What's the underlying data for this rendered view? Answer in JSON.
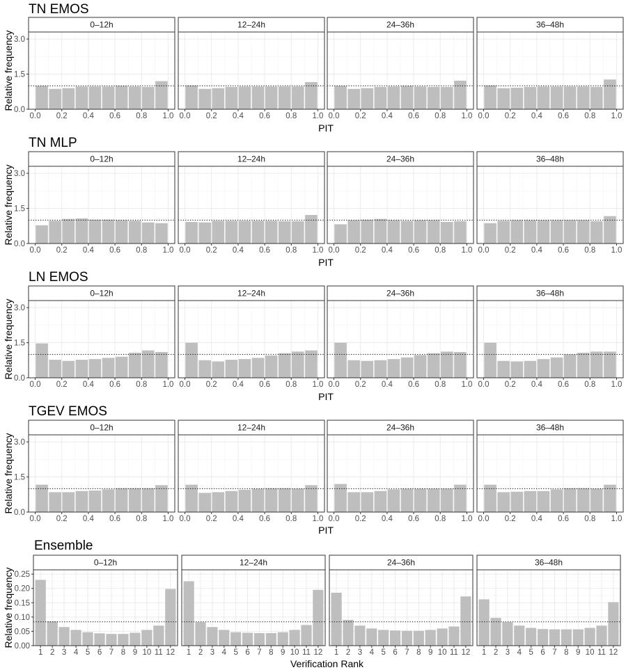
{
  "chart_data": [
    {
      "type": "bar",
      "title": "TN EMOS",
      "xlabel": "PIT",
      "ylabel": "Relative frequency",
      "panels": [
        "0–12h",
        "12–24h",
        "24–36h",
        "36–48h"
      ],
      "x": [
        0.05,
        0.15,
        0.25,
        0.35,
        0.45,
        0.55,
        0.65,
        0.75,
        0.85,
        0.95
      ],
      "xticks": [
        "0.0",
        "0.2",
        "0.4",
        "0.6",
        "0.8",
        "1.0"
      ],
      "xlim": [
        -0.05,
        1.05
      ],
      "yticks": [
        "0.0",
        "1.5",
        "3.0"
      ],
      "ylim": [
        0,
        3.3
      ],
      "reference": 1.0,
      "grid": true,
      "series": [
        {
          "values": [
            1.0,
            0.87,
            0.9,
            0.97,
            0.97,
            0.97,
            1.0,
            0.97,
            0.95,
            1.2
          ]
        },
        {
          "values": [
            1.02,
            0.87,
            0.9,
            0.95,
            0.97,
            0.97,
            0.97,
            0.97,
            0.97,
            1.16
          ]
        },
        {
          "values": [
            1.0,
            0.87,
            0.9,
            0.95,
            0.97,
            1.0,
            0.97,
            0.95,
            0.95,
            1.22
          ]
        },
        {
          "values": [
            1.02,
            0.9,
            0.92,
            0.95,
            0.97,
            0.97,
            0.97,
            0.97,
            0.95,
            1.27
          ]
        }
      ]
    },
    {
      "type": "bar",
      "title": "TN MLP",
      "xlabel": "PIT",
      "ylabel": "Relative frequency",
      "panels": [
        "0–12h",
        "12–24h",
        "24–36h",
        "36–48h"
      ],
      "x": [
        0.05,
        0.15,
        0.25,
        0.35,
        0.45,
        0.55,
        0.65,
        0.75,
        0.85,
        0.95
      ],
      "xticks": [
        "0.0",
        "0.2",
        "0.4",
        "0.6",
        "0.8",
        "1.0"
      ],
      "xlim": [
        -0.05,
        1.05
      ],
      "yticks": [
        "0.0",
        "1.5",
        "3.0"
      ],
      "ylim": [
        0,
        3.3
      ],
      "reference": 1.0,
      "grid": true,
      "series": [
        {
          "values": [
            0.78,
            0.97,
            1.05,
            1.07,
            1.02,
            1.02,
            1.0,
            0.97,
            0.9,
            0.87
          ]
        },
        {
          "values": [
            0.92,
            0.9,
            0.97,
            0.97,
            0.97,
            0.97,
            0.97,
            0.95,
            0.95,
            1.22
          ]
        },
        {
          "values": [
            0.82,
            1.0,
            1.02,
            1.05,
            1.0,
            0.97,
            1.0,
            1.0,
            0.92,
            0.95
          ]
        },
        {
          "values": [
            0.87,
            0.97,
            1.0,
            1.0,
            1.0,
            1.0,
            1.0,
            1.0,
            0.95,
            1.17
          ]
        }
      ]
    },
    {
      "type": "bar",
      "title": "LN EMOS",
      "xlabel": "PIT",
      "ylabel": "Relative frequency",
      "panels": [
        "0–12h",
        "12–24h",
        "24–36h",
        "36–48h"
      ],
      "x": [
        0.05,
        0.15,
        0.25,
        0.35,
        0.45,
        0.55,
        0.65,
        0.75,
        0.85,
        0.95
      ],
      "xticks": [
        "0.0",
        "0.2",
        "0.4",
        "0.6",
        "0.8",
        "1.0"
      ],
      "xlim": [
        -0.05,
        1.05
      ],
      "yticks": [
        "0.0",
        "1.5",
        "3.0"
      ],
      "ylim": [
        0,
        3.3
      ],
      "reference": 1.0,
      "grid": true,
      "series": [
        {
          "values": [
            1.47,
            0.77,
            0.72,
            0.77,
            0.8,
            0.85,
            0.9,
            1.07,
            1.17,
            1.1
          ]
        },
        {
          "values": [
            1.5,
            0.75,
            0.7,
            0.77,
            0.8,
            0.85,
            0.95,
            1.05,
            1.12,
            1.17
          ]
        },
        {
          "values": [
            1.5,
            0.75,
            0.72,
            0.75,
            0.8,
            0.87,
            0.97,
            1.05,
            1.12,
            1.1
          ]
        },
        {
          "values": [
            1.5,
            0.72,
            0.7,
            0.72,
            0.8,
            0.87,
            1.0,
            1.07,
            1.12,
            1.12
          ]
        }
      ]
    },
    {
      "type": "bar",
      "title": "TGEV EMOS",
      "xlabel": "PIT",
      "ylabel": "Relative frequency",
      "panels": [
        "0–12h",
        "12–24h",
        "24–36h",
        "36–48h"
      ],
      "x": [
        0.05,
        0.15,
        0.25,
        0.35,
        0.45,
        0.55,
        0.65,
        0.75,
        0.85,
        0.95
      ],
      "xticks": [
        "0.0",
        "0.2",
        "0.4",
        "0.6",
        "0.8",
        "1.0"
      ],
      "xlim": [
        -0.05,
        1.05
      ],
      "yticks": [
        "0.0",
        "1.5",
        "3.0"
      ],
      "ylim": [
        0,
        3.3
      ],
      "reference": 1.0,
      "grid": true,
      "series": [
        {
          "values": [
            1.17,
            0.85,
            0.85,
            0.9,
            0.92,
            0.97,
            1.02,
            1.02,
            1.02,
            1.15
          ]
        },
        {
          "values": [
            1.17,
            0.82,
            0.85,
            0.9,
            0.95,
            1.0,
            1.02,
            1.02,
            1.0,
            1.15
          ]
        },
        {
          "values": [
            1.2,
            0.85,
            0.85,
            0.9,
            0.97,
            1.0,
            1.0,
            1.0,
            1.0,
            1.17
          ]
        },
        {
          "values": [
            1.17,
            0.85,
            0.87,
            0.9,
            0.9,
            0.97,
            1.02,
            1.02,
            1.0,
            1.17
          ]
        }
      ]
    },
    {
      "type": "bar",
      "title": "Ensemble",
      "xlabel": "Verification Rank",
      "ylabel": "Relative frequency",
      "panels": [
        "0–12h",
        "12–24h",
        "24–36h",
        "36–48h"
      ],
      "categories": [
        "1",
        "2",
        "3",
        "4",
        "5",
        "6",
        "7",
        "8",
        "9",
        "10",
        "11",
        "12"
      ],
      "yticks": [
        "0.00",
        "0.05",
        "0.10",
        "0.15",
        "0.20",
        "0.25"
      ],
      "ylim": [
        0,
        0.265
      ],
      "reference": 0.0833,
      "grid": true,
      "series": [
        {
          "values": [
            0.23,
            0.085,
            0.065,
            0.055,
            0.047,
            0.043,
            0.041,
            0.041,
            0.045,
            0.055,
            0.07,
            0.198
          ]
        },
        {
          "values": [
            0.225,
            0.082,
            0.065,
            0.055,
            0.047,
            0.045,
            0.044,
            0.044,
            0.047,
            0.055,
            0.072,
            0.195
          ]
        },
        {
          "values": [
            0.185,
            0.09,
            0.07,
            0.06,
            0.055,
            0.053,
            0.052,
            0.052,
            0.055,
            0.06,
            0.067,
            0.172
          ]
        },
        {
          "values": [
            0.162,
            0.097,
            0.082,
            0.07,
            0.062,
            0.058,
            0.057,
            0.057,
            0.057,
            0.062,
            0.07,
            0.152
          ]
        }
      ]
    }
  ]
}
